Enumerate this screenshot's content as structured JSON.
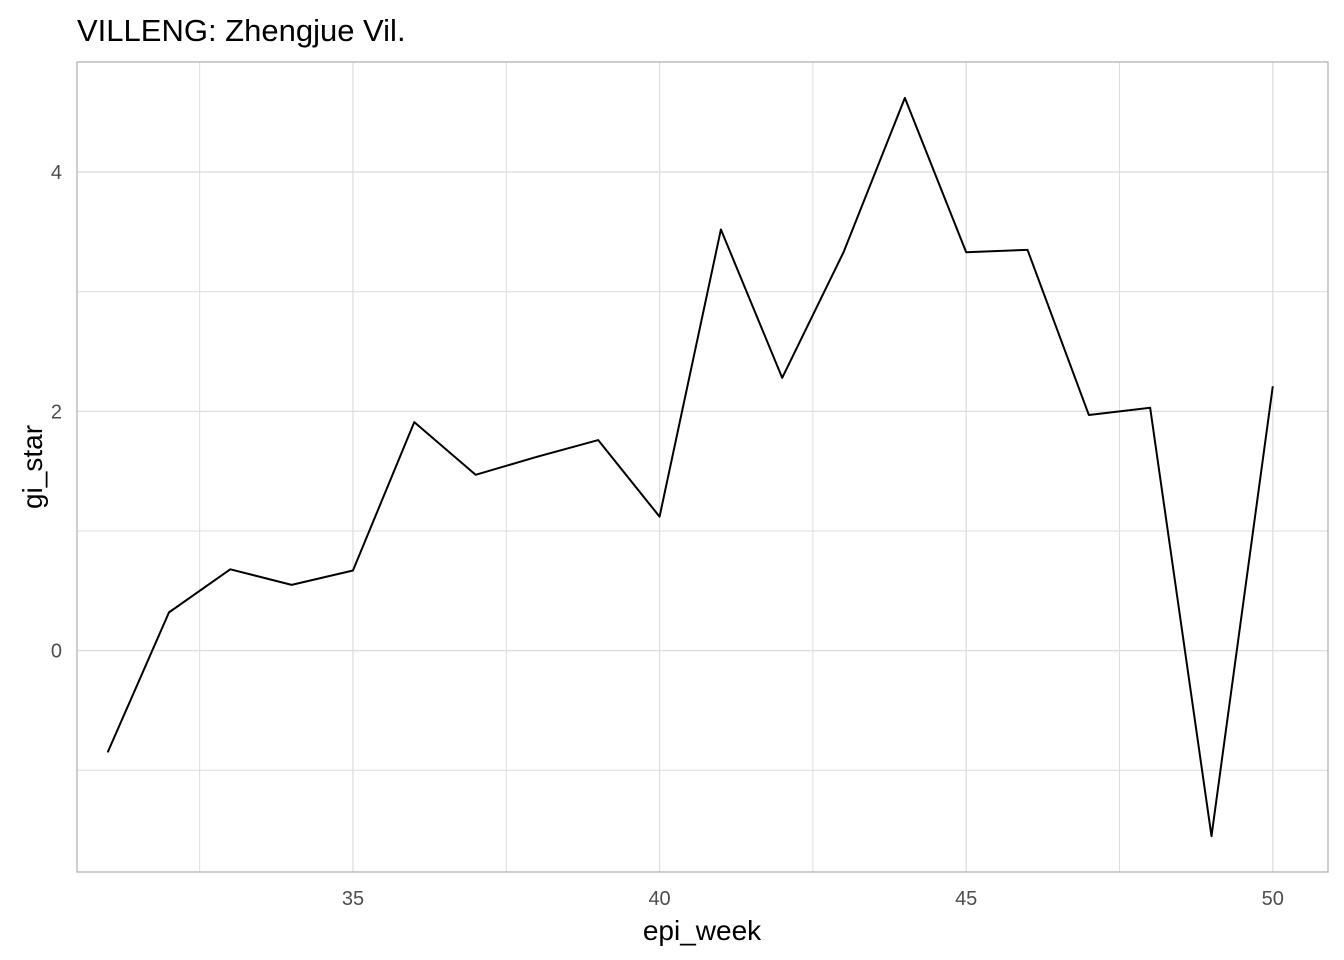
{
  "chart_data": {
    "type": "line",
    "title": "VILLENG: Zhengjue Vil.",
    "xlabel": "epi_week",
    "ylabel": "gi_star",
    "xlim": [
      30.5,
      50.9
    ],
    "ylim": [
      -1.85,
      4.92
    ],
    "x_ticks": [
      35,
      40,
      45,
      50
    ],
    "y_ticks": [
      0,
      2,
      4
    ],
    "x_minor_gridlines": [
      32.5,
      37.5,
      42.5,
      47.5
    ],
    "y_minor_gridlines": [
      -1,
      1,
      3
    ],
    "grid": true,
    "legend": "none",
    "series": [
      {
        "x": [
          31,
          32,
          33,
          34,
          35,
          36,
          37,
          38,
          39,
          40,
          41,
          42,
          43,
          44,
          45,
          46,
          47,
          48,
          49,
          50
        ],
        "y": [
          -0.85,
          0.32,
          0.68,
          0.55,
          0.67,
          1.91,
          1.47,
          1.62,
          1.76,
          1.12,
          3.52,
          2.28,
          3.33,
          4.62,
          3.33,
          3.35,
          1.97,
          2.03,
          -1.55,
          2.21
        ],
        "color": "#000000"
      }
    ]
  },
  "colors": {
    "background": "#ffffff",
    "grid": "#dedede",
    "panel_border": "#b3b3b3",
    "line": "#000000",
    "tick_text": "#4d4d4d"
  }
}
